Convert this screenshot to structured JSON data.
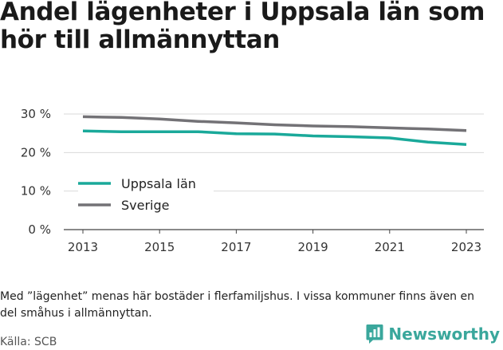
{
  "header": {
    "title": "Andel lägenheter i Uppsala län som hör till allmännyttan"
  },
  "footer": {
    "note": "Med ”lägenhet” menas här bostäder i flerfamiljshus. I vissa kommuner finns även en del småhus i allmännyttan.",
    "source": "Källa: SCB",
    "brand": "Newsworthy"
  },
  "colors": {
    "uppsala": "#1aa99a",
    "sverige": "#737276",
    "grid": "#d9d9d9",
    "brand": "#3aa79c"
  },
  "chart_data": {
    "type": "line",
    "title": "Andel lägenheter i Uppsala län som hör till allmännyttan",
    "x": [
      2013,
      2014,
      2015,
      2016,
      2017,
      2018,
      2019,
      2020,
      2021,
      2022,
      2023
    ],
    "x_ticks": [
      "2013",
      "2015",
      "2017",
      "2019",
      "2021",
      "2023"
    ],
    "y_ticks": [
      {
        "value": 0,
        "label": "0 %"
      },
      {
        "value": 10,
        "label": "10 %"
      },
      {
        "value": 20,
        "label": "20 %"
      },
      {
        "value": 30,
        "label": "30 %"
      }
    ],
    "ylim": [
      0,
      30
    ],
    "grid": true,
    "legend_position": "lower-left",
    "series": [
      {
        "name": "Uppsala län",
        "color": "#1aa99a",
        "values": [
          25.6,
          25.4,
          25.4,
          25.4,
          24.9,
          24.8,
          24.3,
          24.1,
          23.8,
          22.7,
          22.1
        ]
      },
      {
        "name": "Sverige",
        "color": "#737276",
        "values": [
          29.3,
          29.1,
          28.7,
          28.1,
          27.7,
          27.2,
          26.9,
          26.7,
          26.4,
          26.1,
          25.7
        ]
      }
    ]
  }
}
